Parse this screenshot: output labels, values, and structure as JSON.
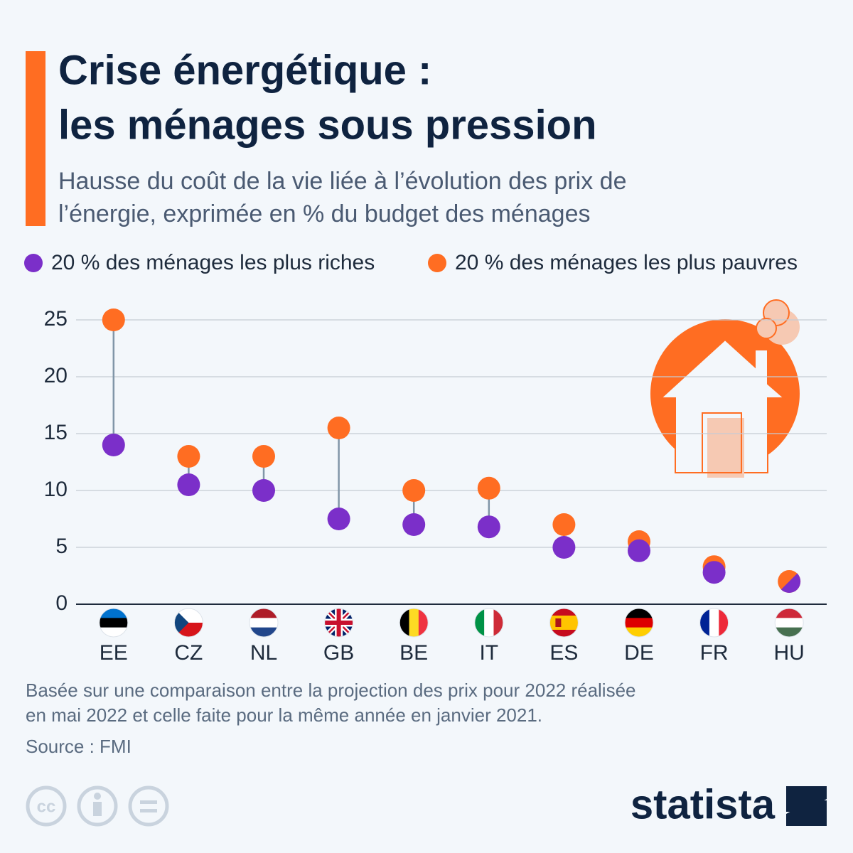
{
  "chart_data": {
    "type": "dumbbell",
    "title": [
      "Crise énergétique :",
      "les ménages sous pression"
    ],
    "subtitle": [
      "Hausse du coût de la vie liée à l’évolution des prix de",
      "l’énergie, exprimée en % du budget des ménages"
    ],
    "categories": [
      "EE",
      "CZ",
      "NL",
      "GB",
      "BE",
      "IT",
      "ES",
      "DE",
      "FR",
      "HU"
    ],
    "series": [
      {
        "name": "20 % des ménages les plus riches",
        "color": "#7b2fc9",
        "values": [
          14,
          10.5,
          10,
          7.5,
          7,
          6.8,
          5,
          4.7,
          2.8,
          2
        ]
      },
      {
        "name": "20 % des ménages les plus pauvres",
        "color": "#ff6d22",
        "values": [
          25,
          13,
          13,
          15.5,
          10,
          10.2,
          7,
          5.5,
          3.3,
          2
        ]
      }
    ],
    "ylim": [
      0,
      25
    ],
    "yticks": [
      0,
      5,
      10,
      15,
      20,
      25
    ],
    "grid": true,
    "note": [
      "Basée sur une comparaison entre la projection des prix pour 2022 réalisée",
      "en mai 2022 et celle faite pour la même année en janvier 2021."
    ],
    "source": "Source : FMI",
    "license": "cc",
    "logo": "statista"
  }
}
